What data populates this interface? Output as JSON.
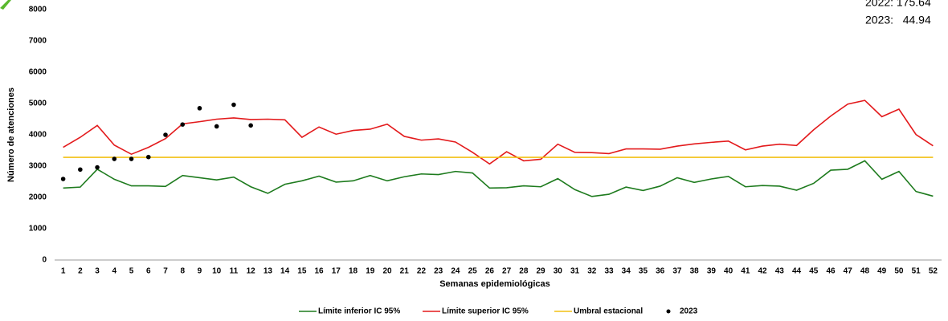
{
  "chart_data": {
    "type": "line",
    "ylabel": "Número de atenciones",
    "xlabel": "Semanas epidemiológicas",
    "annotations": [
      "2022: 175.64",
      "2023:   44.94"
    ],
    "categories": [
      1,
      2,
      3,
      4,
      5,
      6,
      7,
      8,
      9,
      10,
      11,
      12,
      13,
      14,
      15,
      16,
      17,
      18,
      19,
      20,
      21,
      22,
      23,
      24,
      25,
      26,
      27,
      28,
      29,
      30,
      31,
      32,
      33,
      34,
      35,
      36,
      37,
      38,
      39,
      40,
      41,
      42,
      43,
      44,
      45,
      46,
      47,
      48,
      49,
      50,
      51,
      52
    ],
    "ylim": [
      0,
      8000
    ],
    "yticks": [
      0,
      1000,
      2000,
      3000,
      4000,
      5000,
      6000,
      7000,
      8000
    ],
    "series": [
      {
        "name": "Límite inferior IC 95%",
        "color": "#1e7b1e",
        "kind": "line",
        "values": [
          2300,
          2330,
          2900,
          2580,
          2370,
          2370,
          2350,
          2700,
          2630,
          2560,
          2650,
          2340,
          2130,
          2420,
          2530,
          2680,
          2490,
          2530,
          2700,
          2530,
          2660,
          2750,
          2730,
          2830,
          2780,
          2300,
          2310,
          2370,
          2340,
          2600,
          2250,
          2030,
          2100,
          2330,
          2220,
          2360,
          2630,
          2480,
          2590,
          2670,
          2340,
          2380,
          2360,
          2230,
          2450,
          2870,
          2900,
          3170,
          2580,
          2830,
          2190,
          2040
        ]
      },
      {
        "name": "Límite superior IC 95%",
        "color": "#e31a1c",
        "kind": "line",
        "values": [
          3600,
          3920,
          4300,
          3670,
          3380,
          3600,
          3880,
          4350,
          4420,
          4500,
          4540,
          4490,
          4500,
          4480,
          3920,
          4250,
          4020,
          4140,
          4180,
          4340,
          3950,
          3830,
          3870,
          3770,
          3440,
          3070,
          3460,
          3170,
          3220,
          3700,
          3440,
          3430,
          3400,
          3550,
          3550,
          3540,
          3640,
          3710,
          3760,
          3800,
          3520,
          3640,
          3700,
          3660,
          4160,
          4600,
          4980,
          5100,
          4580,
          4820,
          4010,
          3650
        ]
      },
      {
        "name": "Umbral estacional",
        "color": "#f2c014",
        "kind": "line",
        "values": [
          3280,
          3280,
          3280,
          3280,
          3280,
          3280,
          3280,
          3280,
          3280,
          3280,
          3280,
          3280,
          3280,
          3280,
          3280,
          3280,
          3280,
          3280,
          3280,
          3280,
          3280,
          3280,
          3280,
          3280,
          3280,
          3280,
          3280,
          3280,
          3280,
          3280,
          3280,
          3280,
          3280,
          3280,
          3280,
          3280,
          3280,
          3280,
          3280,
          3280,
          3280,
          3280,
          3280,
          3280,
          3280,
          3280,
          3280,
          3280,
          3280,
          3280,
          3280,
          3280
        ]
      },
      {
        "name": "2023",
        "color": "#000000",
        "kind": "scatter",
        "values": [
          2590,
          2890,
          2960,
          3230,
          3230,
          3290,
          4000,
          4330,
          4850,
          4270,
          4960,
          4300,
          null,
          null,
          null,
          null,
          null,
          null,
          null,
          null,
          null,
          null,
          null,
          null,
          null,
          null,
          null,
          null,
          null,
          null,
          null,
          null,
          null,
          null,
          null,
          null,
          null,
          null,
          null,
          null,
          null,
          null,
          null,
          null,
          null,
          null,
          null,
          null,
          null,
          null,
          null,
          null
        ]
      }
    ]
  }
}
